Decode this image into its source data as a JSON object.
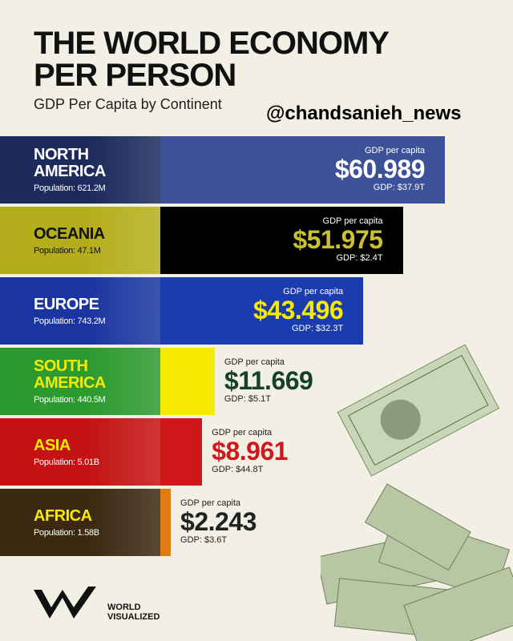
{
  "chart_data": {
    "type": "bar",
    "orientation": "horizontal",
    "title": "THE WORLD ECONOMY PER PERSON",
    "subtitle": "GDP Per Capita by Continent",
    "watermark": "@chandsanieh_news",
    "value_header": "GDP per capita",
    "brand": "WORLD VISUALIZED",
    "categories": [
      "NORTH AMERICA",
      "OCEANIA",
      "EUROPE",
      "SOUTH AMERICA",
      "ASIA",
      "AFRICA"
    ],
    "populations": [
      "Population: 621.2M",
      "Population: 47.1M",
      "Population: 743.2M",
      "Population: 440.5M",
      "Population: 5.01B",
      "Population: 1.58B"
    ],
    "values": [
      60989,
      51975,
      43496,
      11669,
      8961,
      2243
    ],
    "value_labels": [
      "$60.989",
      "$51.975",
      "$43.496",
      "$11.669",
      "$8.961",
      "$2.243"
    ],
    "gdp_totals": [
      "GDP: $37.9T",
      "GDP: $2.4T",
      "GDP: $32.3T",
      "GDP: $5.1T",
      "GDP: $44.8T",
      "GDP: $3.6T"
    ],
    "colors": [
      "#3c5198",
      "#000000",
      "#1b3cae",
      "#f6ea00",
      "#d0181a",
      "#e27c12"
    ],
    "panel_colors": [
      "#1c2a5c",
      "#b5ae1c",
      "#1a35a0",
      "#2c9a2e",
      "#c41212",
      "#3a2810"
    ],
    "label_colors": [
      "#ffffff",
      "#111111",
      "#ffffff",
      "#f6ea00",
      "#f6ea00",
      "#f6ea00"
    ],
    "value_colors": [
      "#ffffff",
      "#c9c22e",
      "#f6ea00",
      "#17402a",
      "#d0181a",
      "#222222"
    ]
  }
}
